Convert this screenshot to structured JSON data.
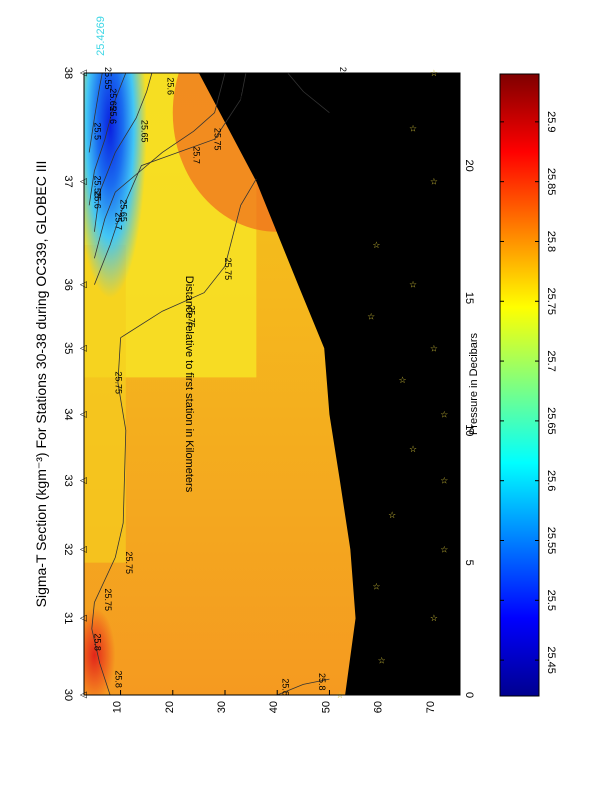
{
  "chart_data": {
    "type": "heatmap",
    "title": "Sigma-T Section (kgm⁻³) For Stations 30-38 during OC339, GLOBEC III",
    "xlabel": "Distance relative to first station in Kilometers",
    "ylabel": "Pressure in Decibars",
    "x_range": [
      0,
      23.5
    ],
    "y_range": [
      3,
      75
    ],
    "y_inverted": true,
    "x_ticks": [
      "0",
      "5",
      "10",
      "15",
      "20"
    ],
    "x_tick_values": [
      0,
      5,
      10,
      15,
      20
    ],
    "y_ticks": [
      "10",
      "20",
      "30",
      "40",
      "50",
      "60",
      "70"
    ],
    "y_tick_values": [
      10,
      20,
      30,
      40,
      50,
      60,
      70
    ],
    "stations": [
      {
        "label": "30",
        "x": 0.0
      },
      {
        "label": "31",
        "x": 2.9
      },
      {
        "label": "32",
        "x": 5.5
      },
      {
        "label": "33",
        "x": 8.1
      },
      {
        "label": "34",
        "x": 10.6
      },
      {
        "label": "35",
        "x": 13.1
      },
      {
        "label": "36",
        "x": 15.5
      },
      {
        "label": "37",
        "x": 19.4
      },
      {
        "label": "38",
        "x": 23.5
      }
    ],
    "max_value_label": "25.4269",
    "colorbar": {
      "range": [
        25.42,
        25.94
      ],
      "ticks": [
        "25.45",
        "25.5",
        "25.55",
        "25.6",
        "25.65",
        "25.7",
        "25.75",
        "25.8",
        "25.85",
        "25.9"
      ],
      "tick_values": [
        25.45,
        25.5,
        25.55,
        25.6,
        25.65,
        25.7,
        25.75,
        25.8,
        25.85,
        25.9
      ]
    },
    "bottom_depth": [
      {
        "x": 0.0,
        "p": 53
      },
      {
        "x": 2.9,
        "p": 55
      },
      {
        "x": 5.5,
        "p": 54
      },
      {
        "x": 8.1,
        "p": 52
      },
      {
        "x": 10.6,
        "p": 50
      },
      {
        "x": 13.1,
        "p": 49
      },
      {
        "x": 15.5,
        "p": 44
      },
      {
        "x": 19.4,
        "p": 36
      },
      {
        "x": 23.5,
        "p": 25
      }
    ],
    "sample_markers": [
      {
        "x": 0.0,
        "p": 52
      },
      {
        "x": 1.3,
        "p": 60
      },
      {
        "x": 2.9,
        "p": 70
      },
      {
        "x": 4.1,
        "p": 59
      },
      {
        "x": 5.5,
        "p": 72
      },
      {
        "x": 6.8,
        "p": 62
      },
      {
        "x": 8.1,
        "p": 72
      },
      {
        "x": 9.3,
        "p": 66
      },
      {
        "x": 10.6,
        "p": 72
      },
      {
        "x": 11.9,
        "p": 64
      },
      {
        "x": 13.1,
        "p": 70
      },
      {
        "x": 14.3,
        "p": 58
      },
      {
        "x": 15.5,
        "p": 66
      },
      {
        "x": 17.0,
        "p": 59
      },
      {
        "x": 19.4,
        "p": 70
      },
      {
        "x": 21.4,
        "p": 66
      },
      {
        "x": 23.5,
        "p": 70
      }
    ],
    "contour_labels": [
      {
        "text": "25.8",
        "x": 0.6,
        "p": 9
      },
      {
        "text": "25.8",
        "x": 2.0,
        "p": 5
      },
      {
        "text": "25.8",
        "x": 0.3,
        "p": 41
      },
      {
        "text": "25.8",
        "x": 0.5,
        "p": 48
      },
      {
        "text": "25.75",
        "x": 3.6,
        "p": 7
      },
      {
        "text": "25.75",
        "x": 5.0,
        "p": 11
      },
      {
        "text": "25.75",
        "x": 11.8,
        "p": 9
      },
      {
        "text": "25.75",
        "x": 14.3,
        "p": 23
      },
      {
        "text": "25.75",
        "x": 16.1,
        "p": 30
      },
      {
        "text": "25.75",
        "x": 17.7,
        "p": 56
      },
      {
        "text": "25.75",
        "x": 20.2,
        "p": 37
      },
      {
        "text": "25.75",
        "x": 21.0,
        "p": 28
      },
      {
        "text": "25.7",
        "x": 17.9,
        "p": 9
      },
      {
        "text": "25.7",
        "x": 20.4,
        "p": 24
      },
      {
        "text": "25.7",
        "x": 22.8,
        "p": 32
      },
      {
        "text": "25.65",
        "x": 18.3,
        "p": 10
      },
      {
        "text": "25.65",
        "x": 21.3,
        "p": 14
      },
      {
        "text": "25.65",
        "x": 22.5,
        "p": 8
      },
      {
        "text": "25.6",
        "x": 18.7,
        "p": 5
      },
      {
        "text": "25.6",
        "x": 21.9,
        "p": 8
      },
      {
        "text": "25.6",
        "x": 23.0,
        "p": 19
      },
      {
        "text": "25.55",
        "x": 19.2,
        "p": 5
      },
      {
        "text": "25.55",
        "x": 23.3,
        "p": 7
      },
      {
        "text": "25.5",
        "x": 21.3,
        "p": 5
      },
      {
        "text": "25.8",
        "x": 23.4,
        "p": 52
      },
      {
        "text": "25.8",
        "x": 21.6,
        "p": 55
      }
    ]
  }
}
